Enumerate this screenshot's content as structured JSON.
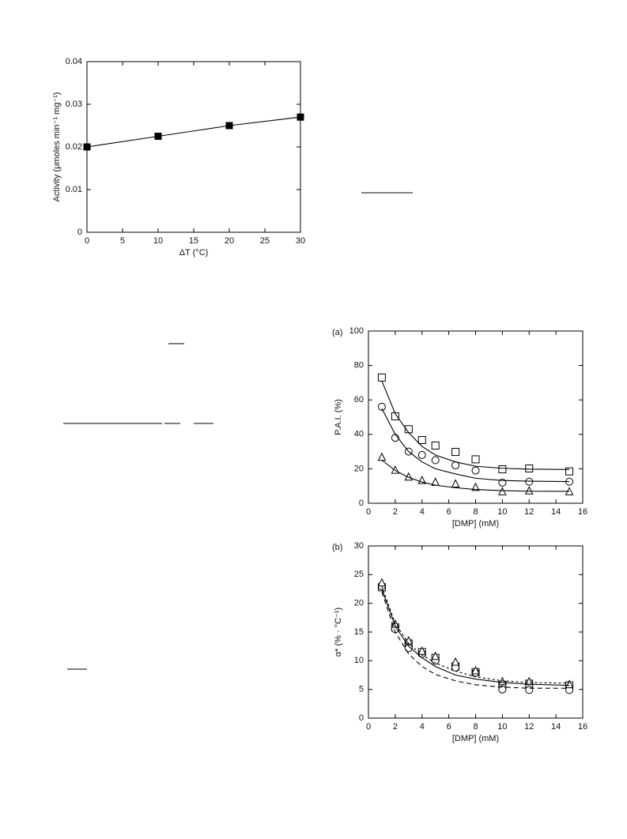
{
  "chart_data": [
    {
      "type": "scatter-line",
      "x_label": "ΔT (°C)",
      "y_label": "Activity (μmoles min⁻¹ mg⁻¹)",
      "x": [
        0,
        10,
        20,
        30
      ],
      "series": [
        {
          "color": "#000000",
          "marker": "filled-square",
          "dash": "solid",
          "connect": true,
          "values": [
            0.02,
            0.0225,
            0.025,
            0.027
          ]
        }
      ],
      "xlim": [
        0,
        30
      ],
      "xticks": [
        0,
        5,
        10,
        15,
        20,
        25,
        30
      ],
      "ylim": [
        0,
        0.04
      ],
      "yticks": [
        0,
        0.01,
        0.02,
        0.03,
        0.04
      ]
    },
    {
      "type": "scatter-line",
      "title": "(a)",
      "x_label": "[DMP] (mM)",
      "y_label": "P.A.I. (%)",
      "x": [
        1,
        2,
        3,
        4,
        5,
        6.5,
        8,
        10,
        12,
        15
      ],
      "series": [
        {
          "color": "#000000",
          "marker": "square",
          "values": [
            73,
            50.5,
            43,
            36.7,
            33.5,
            29.8,
            25.5,
            19.7,
            20.2,
            18.5
          ]
        },
        {
          "color": "#000000",
          "marker": "circle",
          "values": [
            56,
            38,
            30,
            28,
            25,
            22,
            19,
            12,
            12.5,
            12.5
          ]
        },
        {
          "color": "#000000",
          "marker": "triangle",
          "values": [
            26.5,
            19,
            15,
            13,
            12,
            11,
            9,
            6.5,
            7,
            6.5
          ]
        },
        {
          "color": "#000000",
          "dash": "solid",
          "values": [
            71,
            52,
            41,
            33,
            28,
            24,
            21.5,
            20.3,
            19.8,
            19.6
          ]
        },
        {
          "color": "#000000",
          "dash": "solid",
          "values": [
            55,
            40,
            30,
            24,
            20,
            17,
            14.5,
            13.2,
            12.8,
            12.6
          ]
        },
        {
          "color": "#000000",
          "dash": "solid",
          "values": [
            25,
            19,
            15,
            12.3,
            10.5,
            9,
            8,
            7.3,
            7,
            6.9
          ]
        }
      ],
      "xlim": [
        0,
        16
      ],
      "xticks": [
        0,
        2,
        4,
        6,
        8,
        10,
        12,
        14,
        16
      ],
      "ylim": [
        0,
        100
      ],
      "yticks": [
        0,
        20,
        40,
        60,
        80,
        100
      ]
    },
    {
      "type": "scatter-line",
      "title": "(b)",
      "x_label": "[DMP] (mM)",
      "y_label": "α* (% · °C⁻¹)",
      "x": [
        1,
        2,
        3,
        4,
        5,
        6.5,
        8,
        10,
        12,
        15
      ],
      "series": [
        {
          "color": "#000000",
          "marker": "square",
          "values": [
            22.8,
            15.8,
            13,
            11.5,
            10.5,
            9,
            8,
            5.8,
            6,
            5.7
          ]
        },
        {
          "color": "#000000",
          "marker": "circle",
          "values": [
            23,
            15.5,
            12.2,
            11.2,
            10,
            8.8,
            7.9,
            5,
            4.9,
            4.9
          ]
        },
        {
          "color": "#000000",
          "marker": "triangle",
          "values": [
            23.5,
            16.3,
            13.4,
            11.6,
            10.7,
            9.7,
            8.2,
            6.3,
            6.3,
            5.8
          ]
        },
        {
          "color": "#000000",
          "dash": "solid",
          "values": [
            22.5,
            16,
            12.5,
            10.5,
            9,
            7.5,
            6.8,
            6.2,
            5.9,
            5.7
          ]
        },
        {
          "color": "#000000",
          "dash": "dashed",
          "values": [
            22,
            15,
            11.2,
            9,
            7.6,
            6.5,
            5.8,
            5.4,
            5.2,
            5.2
          ]
        },
        {
          "color": "#000000",
          "dash": "dotted",
          "values": [
            23,
            16.5,
            13,
            11,
            9.6,
            8.2,
            7.2,
            6.5,
            6.2,
            6.1
          ]
        }
      ],
      "xlim": [
        0,
        16
      ],
      "xticks": [
        0,
        2,
        4,
        6,
        8,
        10,
        12,
        14,
        16
      ],
      "ylim": [
        0,
        30
      ],
      "yticks": [
        0,
        5,
        10,
        15,
        20,
        25,
        30
      ]
    }
  ]
}
